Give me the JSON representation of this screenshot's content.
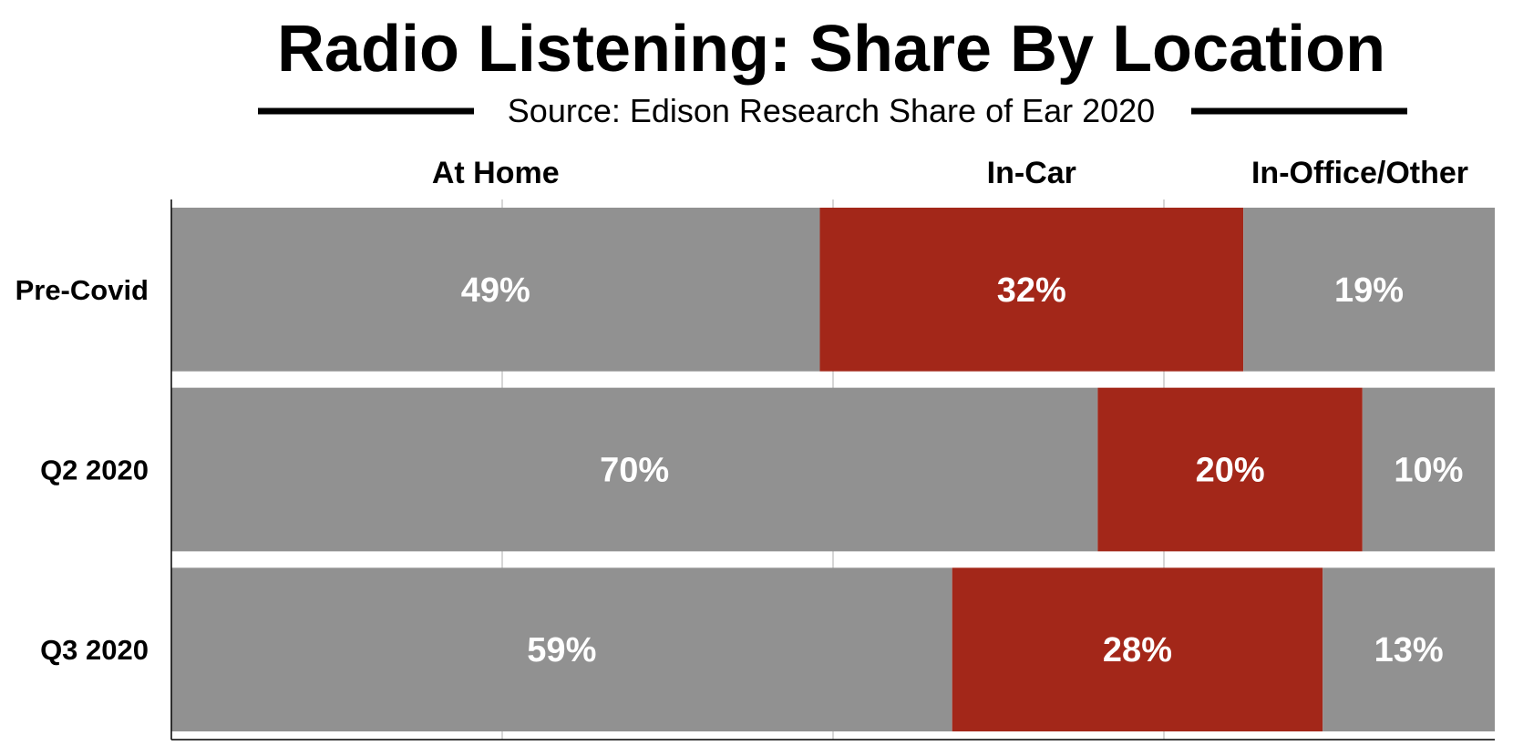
{
  "chart_data": {
    "type": "bar",
    "orientation": "horizontal",
    "stacked": true,
    "title": "Radio Listening: Share By Location",
    "subtitle": "Source: Edison Research Share of Ear 2020",
    "categories": [
      "Pre-Covid",
      "Q2 2020",
      "Q3 2020"
    ],
    "series": [
      {
        "name": "At Home",
        "values": [
          49,
          70,
          59
        ],
        "color": "#919191"
      },
      {
        "name": "In-Car",
        "values": [
          32,
          20,
          28
        ],
        "color": "#a32719"
      },
      {
        "name": "In-Office/Other",
        "values": [
          19,
          10,
          13
        ],
        "color": "#919191"
      }
    ],
    "data_labels": [
      [
        "49%",
        "70%",
        "59%"
      ],
      [
        "32%",
        "20%",
        "28%"
      ],
      [
        "19%",
        "10%",
        "13%"
      ]
    ],
    "xlim": [
      0,
      100
    ],
    "grid": true,
    "legend": "top"
  }
}
